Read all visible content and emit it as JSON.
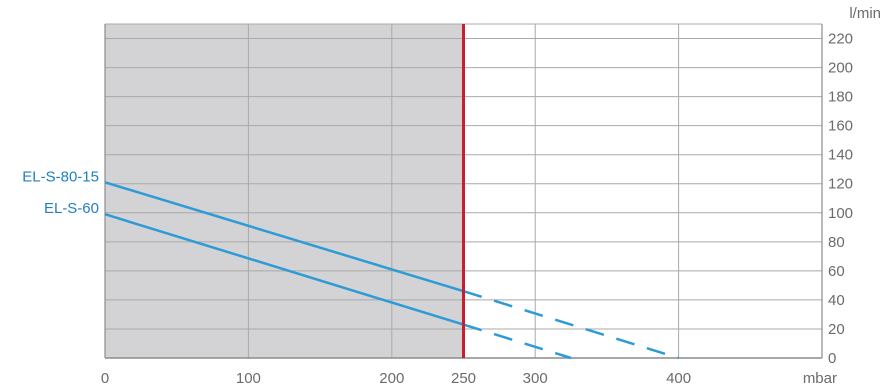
{
  "chart_data": {
    "type": "line",
    "xlabel": "mbar",
    "ylabel": "l/min",
    "xlim": [
      0,
      500
    ],
    "ylim": [
      0,
      230
    ],
    "x_ticks": [
      0,
      100,
      200,
      250,
      300,
      400
    ],
    "y_ticks": [
      0,
      20,
      40,
      60,
      80,
      100,
      120,
      140,
      160,
      180,
      200,
      220
    ],
    "grid": true,
    "shaded_region": {
      "from": 0,
      "to": 250,
      "color": "#d3d3d5"
    },
    "limit_line": {
      "x": 250,
      "label": "250",
      "color": "#c81e2d"
    },
    "series_color": "#2e9ad6",
    "label_color": "#1f7fc0",
    "series": [
      {
        "name": "EL-S-80-15",
        "solid": [
          [
            0,
            121
          ],
          [
            250,
            46
          ]
        ],
        "dashed": [
          [
            250,
            46
          ],
          [
            400,
            0
          ]
        ]
      },
      {
        "name": "EL-S-60",
        "solid": [
          [
            0,
            99
          ],
          [
            250,
            23
          ]
        ],
        "dashed": [
          [
            250,
            23
          ],
          [
            325,
            0
          ]
        ]
      }
    ]
  }
}
